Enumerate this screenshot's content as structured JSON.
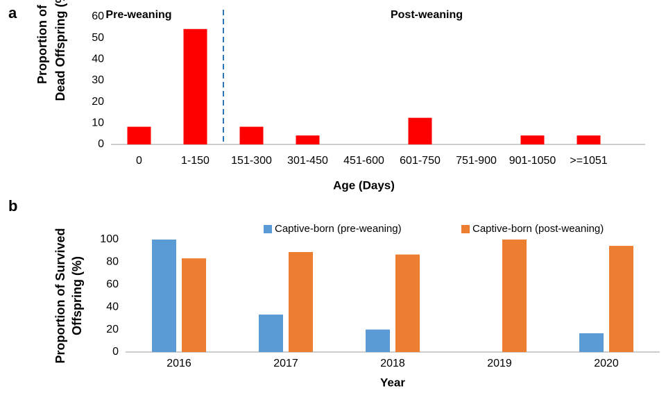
{
  "chart_data": [
    {
      "type": "bar",
      "panel": "a",
      "ylabel": [
        "Proportion of",
        "Dead Offspring (%)"
      ],
      "xlabel": "Age (Days)",
      "annotations": [
        "Pre-weaning",
        "Post-weaning"
      ],
      "categories": [
        "0",
        "1-150",
        "151-300",
        "301-450",
        "451-600",
        "601-750",
        "751-900",
        "901-1050",
        ">=1051"
      ],
      "series": [
        {
          "name": null,
          "color": "#ff0000",
          "values": [
            8.3,
            54.2,
            8.3,
            4.2,
            0,
            12.5,
            0,
            4.2,
            4.2
          ]
        }
      ],
      "ylim": [
        0,
        60
      ],
      "yticks": [
        0,
        10,
        20,
        30,
        40,
        50,
        60
      ],
      "grid": false
    },
    {
      "type": "bar",
      "panel": "b",
      "ylabel": [
        "Proportion of Survived",
        "Offspring (%)"
      ],
      "xlabel": "Year",
      "categories": [
        "2016",
        "2017",
        "2018",
        "2019",
        "2020"
      ],
      "series": [
        {
          "name": "Captive-born (pre-weaning)",
          "color": "#5b9bd5",
          "values": [
            100,
            33.3,
            20,
            0,
            16.7
          ]
        },
        {
          "name": "Captive-born (post-weaning)",
          "color": "#ed7d31",
          "values": [
            83.3,
            88.9,
            86.7,
            100,
            94.4
          ]
        }
      ],
      "ylim": [
        0,
        100
      ],
      "yticks": [
        0,
        20,
        40,
        60,
        80,
        100
      ],
      "grid": false,
      "legend": "top"
    }
  ]
}
